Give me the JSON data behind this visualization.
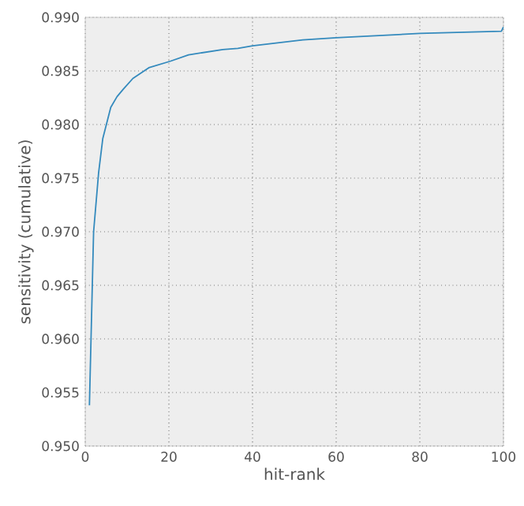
{
  "chart_data": {
    "type": "line",
    "xlabel": "hit-rank",
    "ylabel": "sensitivity (cumulative)",
    "x": [
      1,
      2,
      3.2,
      4.2,
      6.1,
      7.6,
      9.1,
      11.4,
      15.2,
      20.3,
      24.7,
      32.9,
      36.5,
      40,
      52,
      60,
      80,
      99.5,
      100
    ],
    "series": [
      {
        "color": "#348abd",
        "values": [
          0.9538,
          0.97,
          0.9755,
          0.9787,
          0.9816,
          0.9826,
          0.9833,
          0.9843,
          0.9853,
          0.9859,
          0.9865,
          0.987,
          0.9871,
          0.98735,
          0.9879,
          0.9881,
          0.9885,
          0.9887,
          0.9891
        ]
      }
    ],
    "xlim": [
      0,
      100
    ],
    "ylim": [
      0.95,
      0.99
    ],
    "xticks": [
      0,
      20,
      40,
      60,
      80,
      100
    ],
    "yticks": [
      {
        "value": 0.95,
        "label": "0.950"
      },
      {
        "value": 0.955,
        "label": "0.955"
      },
      {
        "value": 0.96,
        "label": "0.960"
      },
      {
        "value": 0.965,
        "label": "0.965"
      },
      {
        "value": 0.97,
        "label": "0.970"
      },
      {
        "value": 0.975,
        "label": "0.975"
      },
      {
        "value": 0.98,
        "label": "0.980"
      },
      {
        "value": 0.985,
        "label": "0.985"
      },
      {
        "value": 0.99,
        "label": "0.990"
      }
    ],
    "grid": true,
    "marker": "none",
    "line_style": "solid"
  }
}
